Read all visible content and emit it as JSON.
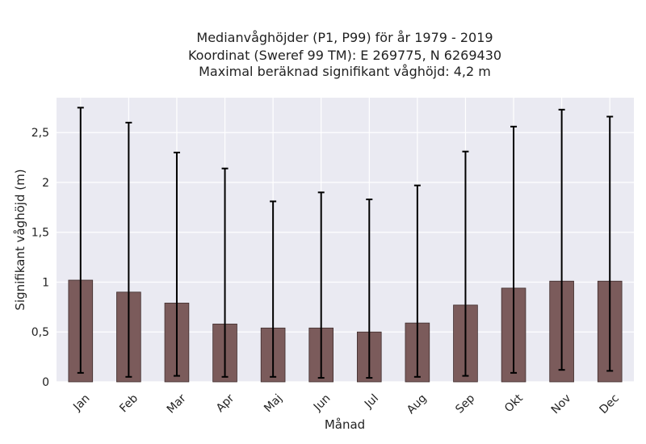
{
  "chart_data": {
    "type": "bar",
    "title_lines": [
      "Medianvåghöjder (P1, P99) för år 1979 - 2019",
      "Koordinat (Sweref 99 TM): E 269775, N 6269430",
      "Maximal beräknad signifikant våghöjd: 4,2 m"
    ],
    "xlabel": "Månad",
    "ylabel": "Signifikant våghöjd (m)",
    "categories": [
      "Jan",
      "Feb",
      "Mar",
      "Apr",
      "Maj",
      "Jun",
      "Jul",
      "Aug",
      "Sep",
      "Okt",
      "Nov",
      "Dec"
    ],
    "values": [
      1.02,
      0.9,
      0.79,
      0.58,
      0.54,
      0.54,
      0.5,
      0.59,
      0.77,
      0.94,
      1.01,
      1.01
    ],
    "error_low": [
      0.09,
      0.05,
      0.06,
      0.05,
      0.05,
      0.04,
      0.04,
      0.05,
      0.06,
      0.09,
      0.12,
      0.11
    ],
    "error_high": [
      2.75,
      2.6,
      2.3,
      2.14,
      1.81,
      1.9,
      1.83,
      1.97,
      2.31,
      2.56,
      2.73,
      2.66
    ],
    "ylim": [
      0,
      2.85
    ],
    "yticks": [
      0,
      0.5,
      1,
      1.5,
      2,
      2.5
    ],
    "ytick_labels": [
      "0",
      "0,5",
      "1",
      "1,5",
      "2",
      "2,5"
    ],
    "grid": true,
    "colors": {
      "bar": "#7b5b5b",
      "bar_edge": "#3e2c2c",
      "error_bar": "#000000",
      "plot_background": "#eaeaf2",
      "grid": "#ffffff"
    }
  }
}
